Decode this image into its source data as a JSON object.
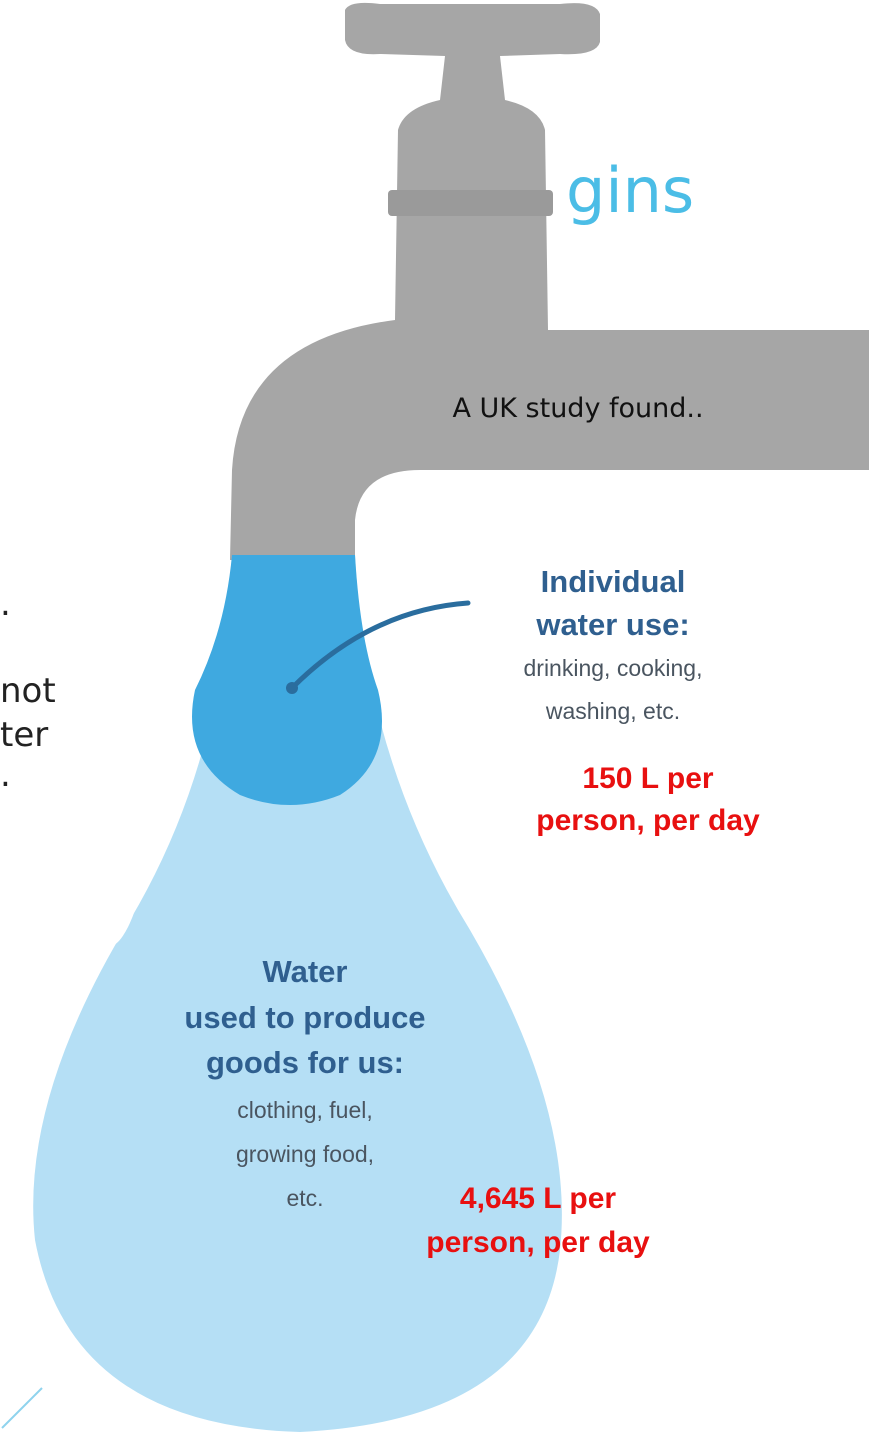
{
  "slide": {
    "title": "gins",
    "text_fragments": [
      ".",
      "not",
      "ter",
      "."
    ]
  },
  "infographic": {
    "intro": "A UK study found..",
    "individual": {
      "heading": [
        "Individual",
        "water use:"
      ],
      "examples": [
        "drinking, cooking,",
        "washing, etc."
      ],
      "amount": [
        "150 L per",
        "person, per day"
      ]
    },
    "goods": {
      "heading": [
        "Water",
        "used to produce",
        "goods for us:"
      ],
      "examples": [
        "clothing, fuel,",
        "growing food,",
        "etc."
      ],
      "amount": [
        "4,645 L per",
        "person, per day"
      ]
    }
  }
}
